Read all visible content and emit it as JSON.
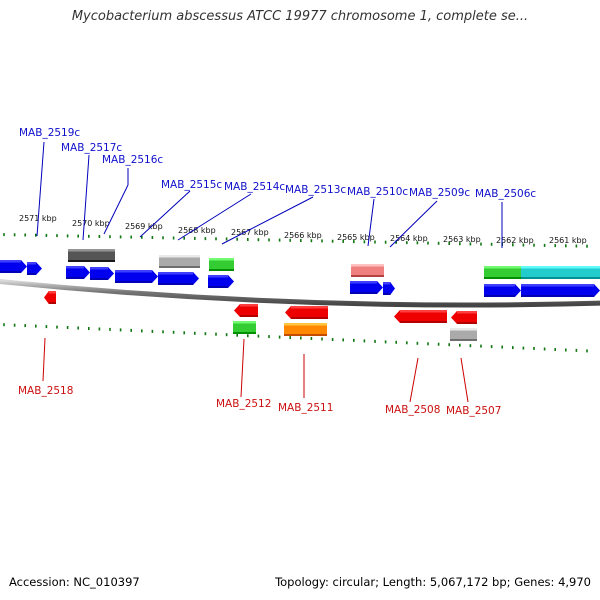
{
  "title": "Mycobacterium abscessus ATCC 19977 chromosome 1, complete se...",
  "footer": {
    "accession_label": "Accession:",
    "accession": "NC_010397",
    "topology_label": "Topology:",
    "topology": "circular",
    "length_label": "Length:",
    "length": "5,067,172 bp",
    "genes_label": "Genes:",
    "genes": "4,970"
  },
  "scale_labels": [
    "2571 kbp",
    "2570 kbp",
    "2569 kbp",
    "2568 kbp",
    "2567 kbp",
    "2566 kbp",
    "2565 kbp",
    "2564 kbp",
    "2563 kbp",
    "2562 kbp",
    "2561 kbp"
  ],
  "genes_top": [
    {
      "label": "MAB_2519c"
    },
    {
      "label": "MAB_2517c"
    },
    {
      "label": "MAB_2516c"
    },
    {
      "label": "MAB_2515c"
    },
    {
      "label": "MAB_2514c"
    },
    {
      "label": "MAB_2513c"
    },
    {
      "label": "MAB_2510c"
    },
    {
      "label": "MAB_2509c"
    },
    {
      "label": "MAB_2506c"
    }
  ],
  "genes_bottom": [
    {
      "label": "MAB_2518"
    },
    {
      "label": "MAB_2512"
    },
    {
      "label": "MAB_2511"
    },
    {
      "label": "MAB_2508"
    },
    {
      "label": "MAB_2507"
    }
  ],
  "colors": {
    "forward_strand_gene": "#ee0000",
    "reverse_strand_gene": "#0000ee",
    "rna_gene": "#33cc33",
    "pseudo_gene": "#aaaaaa",
    "dark_feature": "#555555",
    "orange_feature": "#ff8800",
    "pink_feature": "#f08080",
    "cyan_feature": "#22cccc",
    "scale_ticks": "#117711",
    "backbone": "#888888"
  }
}
